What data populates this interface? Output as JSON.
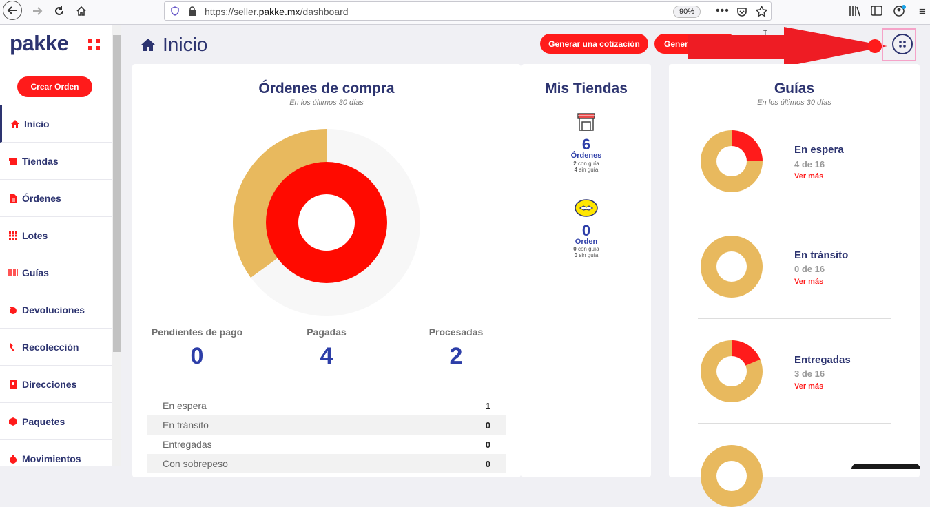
{
  "browser": {
    "url_prefix": "https://seller.",
    "url_domain": "pakke.mx",
    "url_path": "/dashboard",
    "zoom": "90%"
  },
  "sidebar": {
    "logo": "pakke",
    "create_order": "Crear Orden",
    "items": [
      {
        "label": "Inicio",
        "icon": "home-icon"
      },
      {
        "label": "Tiendas",
        "icon": "store-icon"
      },
      {
        "label": "Órdenes",
        "icon": "document-icon"
      },
      {
        "label": "Lotes",
        "icon": "grid-icon"
      },
      {
        "label": "Guías",
        "icon": "barcode-icon"
      },
      {
        "label": "Devoluciones",
        "icon": "return-icon"
      },
      {
        "label": "Recolección",
        "icon": "pickup-icon"
      },
      {
        "label": "Direcciones",
        "icon": "address-icon"
      },
      {
        "label": "Paquetes",
        "icon": "package-icon"
      },
      {
        "label": "Movimientos",
        "icon": "money-bag-icon"
      }
    ]
  },
  "header": {
    "title": "Inicio",
    "btn_cotizacion": "Generar una cotización",
    "btn_second": "Gener"
  },
  "ordenes": {
    "title": "Órdenes de compra",
    "subtitle": "En los últimos 30 días",
    "stats": [
      {
        "label": "Pendientes de pago",
        "value": "0"
      },
      {
        "label": "Pagadas",
        "value": "4"
      },
      {
        "label": "Procesadas",
        "value": "2"
      }
    ],
    "table": [
      {
        "label": "En espera",
        "value": "1"
      },
      {
        "label": "En tránsito",
        "value": "0"
      },
      {
        "label": "Entregadas",
        "value": "0"
      },
      {
        "label": "Con sobrepeso",
        "value": "0"
      }
    ],
    "donut": {
      "outer_red_fraction": 0.35,
      "inner_red_fraction": 1.0
    }
  },
  "tiendas": {
    "title": "Mis Tiendas",
    "stores": [
      {
        "icon": "shop-icon",
        "count": "6",
        "label": "Órdenes",
        "with_guide": "2",
        "with_guide_text": "con guía",
        "without_guide": "4",
        "without_guide_text": "sin guía"
      },
      {
        "icon": "mercadolibre-icon",
        "count": "0",
        "label": "Orden",
        "with_guide": "0",
        "with_guide_text": "con guía",
        "without_guide": "0",
        "without_guide_text": "sin guía"
      }
    ]
  },
  "guias": {
    "title": "Guías",
    "subtitle": "En los últimos 30 días",
    "link_text": "Ver más",
    "items": [
      {
        "title": "En espera",
        "count": "4 de 16",
        "fraction": 0.25
      },
      {
        "title": "En tránsito",
        "count": "0 de 16",
        "fraction": 0
      },
      {
        "title": "Entregadas",
        "count": "3 de 16",
        "fraction": 0.1875
      },
      {
        "title": "",
        "count": "",
        "fraction": 0
      }
    ]
  },
  "colors": {
    "accent": "#ff1b1b",
    "navy": "#2d3470",
    "gold": "#e8b95e",
    "highlight": "#f5a3c8"
  }
}
